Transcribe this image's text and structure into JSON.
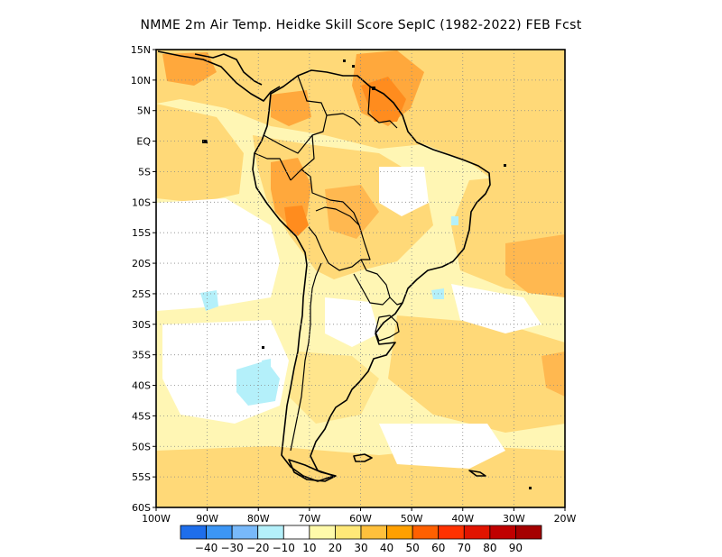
{
  "title": "NMME  2m Air Temp. Heidke Skill Score SepIC (1982-2022) FEB Fcst",
  "map": {
    "region": "South America",
    "lon_range": [
      -100,
      -20
    ],
    "lat_range": [
      -60,
      15
    ],
    "lon_ticks": [
      {
        "value": -100,
        "label": "100W"
      },
      {
        "value": -90,
        "label": "90W"
      },
      {
        "value": -80,
        "label": "80W"
      },
      {
        "value": -70,
        "label": "70W"
      },
      {
        "value": -60,
        "label": "60W"
      },
      {
        "value": -50,
        "label": "50W"
      },
      {
        "value": -40,
        "label": "40W"
      },
      {
        "value": -30,
        "label": "30W"
      },
      {
        "value": -20,
        "label": "20W"
      }
    ],
    "lat_ticks": [
      {
        "value": 15,
        "label": "15N"
      },
      {
        "value": 10,
        "label": "10N"
      },
      {
        "value": 5,
        "label": "5N"
      },
      {
        "value": 0,
        "label": "EQ"
      },
      {
        "value": -5,
        "label": "5S"
      },
      {
        "value": -10,
        "label": "10S"
      },
      {
        "value": -15,
        "label": "15S"
      },
      {
        "value": -20,
        "label": "20S"
      },
      {
        "value": -25,
        "label": "25S"
      },
      {
        "value": -30,
        "label": "30S"
      },
      {
        "value": -35,
        "label": "35S"
      },
      {
        "value": -40,
        "label": "40S"
      },
      {
        "value": -45,
        "label": "45S"
      },
      {
        "value": -50,
        "label": "50S"
      },
      {
        "value": -55,
        "label": "55S"
      },
      {
        "value": -60,
        "label": "60S"
      }
    ],
    "gridlines": "dotted",
    "background": "#fff6b4"
  },
  "colorbar": {
    "colors": [
      "#1e6eeb",
      "#3c96f5",
      "#78b9fa",
      "#b4f0fa",
      "#ffffff",
      "#fffaaa",
      "#ffe878",
      "#ffc03c",
      "#ffa000",
      "#ff6000",
      "#ff3200",
      "#e11400",
      "#c00000",
      "#a50000"
    ],
    "labels": [
      "-40",
      "-30",
      "-20",
      "-10",
      "10",
      "20",
      "30",
      "40",
      "50",
      "60",
      "70",
      "80",
      "90"
    ]
  }
}
